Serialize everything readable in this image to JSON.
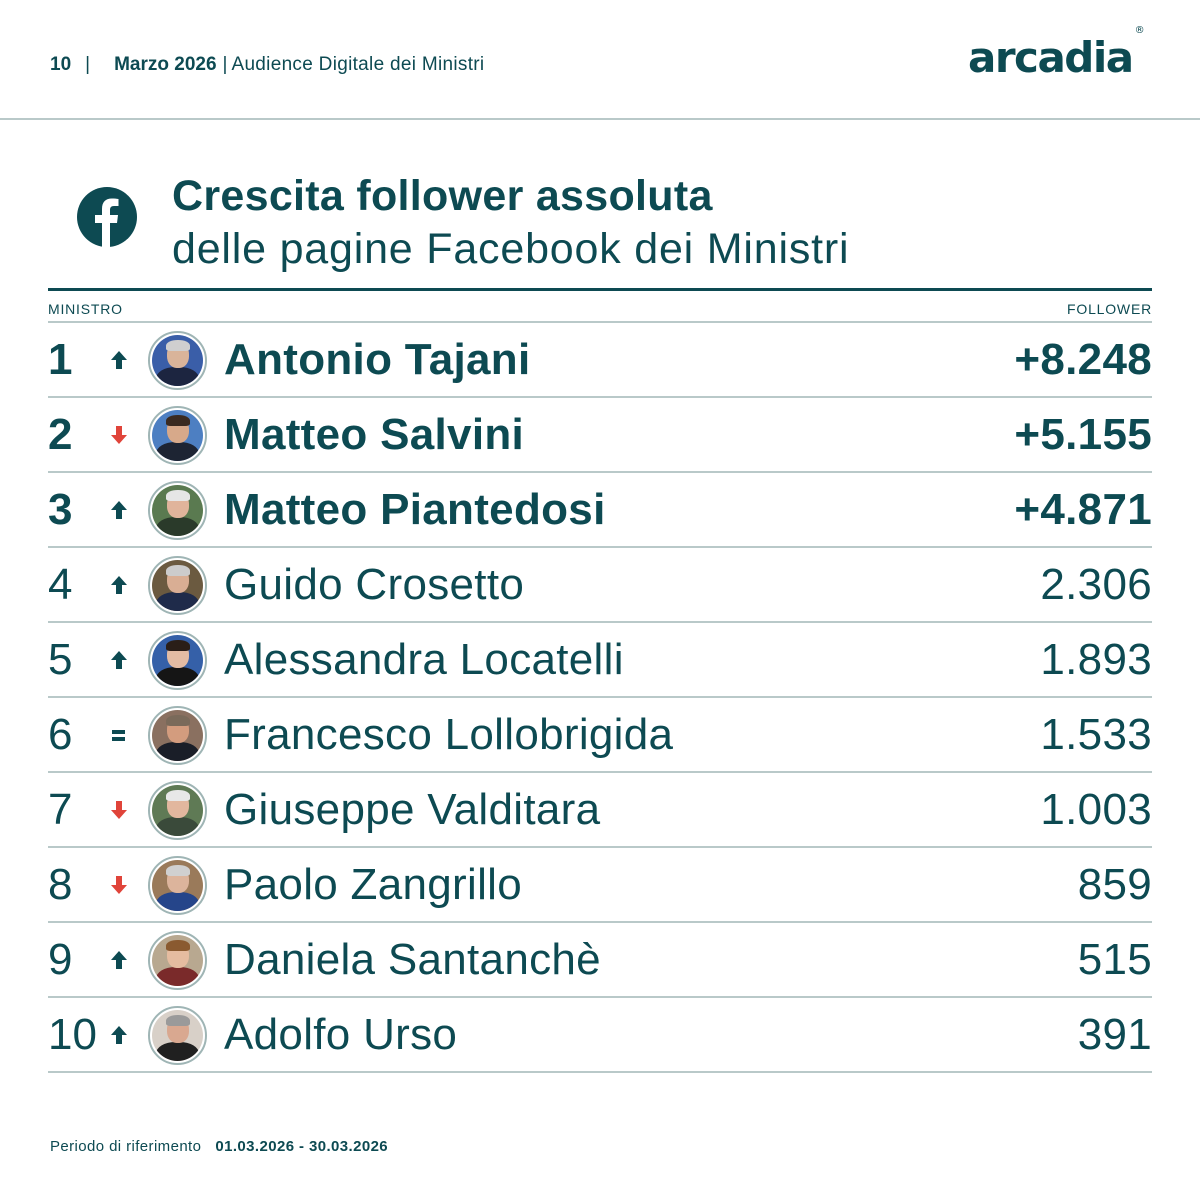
{
  "header": {
    "page_number": "10",
    "separator": "|",
    "month": "Marzo 2026",
    "doc_title": "Audience Digitale dei Ministri",
    "logo_text": "arcadia",
    "logo_mark": "®"
  },
  "section": {
    "icon": "facebook-icon",
    "title_line1": "Crescita follower assoluta",
    "title_line2": "delle pagine Facebook dei Ministri"
  },
  "table": {
    "columns": {
      "left": "MINISTRO",
      "right": "FOLLOWER"
    },
    "rows": [
      {
        "rank": "1",
        "trend": "up",
        "name": "Antonio Tajani",
        "value": "+8.248",
        "highlight": true
      },
      {
        "rank": "2",
        "trend": "down",
        "name": "Matteo Salvini",
        "value": "+5.155",
        "highlight": true
      },
      {
        "rank": "3",
        "trend": "up",
        "name": "Matteo Piantedosi",
        "value": "+4.871",
        "highlight": true
      },
      {
        "rank": "4",
        "trend": "up",
        "name": "Guido Crosetto",
        "value": "2.306",
        "highlight": false
      },
      {
        "rank": "5",
        "trend": "up",
        "name": "Alessandra Locatelli",
        "value": "1.893",
        "highlight": false
      },
      {
        "rank": "6",
        "trend": "same",
        "name": "Francesco Lollobrigida",
        "value": "1.533",
        "highlight": false
      },
      {
        "rank": "7",
        "trend": "down",
        "name": "Giuseppe Valditara",
        "value": "1.003",
        "highlight": false
      },
      {
        "rank": "8",
        "trend": "down",
        "name": "Paolo Zangrillo",
        "value": "859",
        "highlight": false
      },
      {
        "rank": "9",
        "trend": "up",
        "name": "Daniela Santanchè",
        "value": "515",
        "highlight": false
      },
      {
        "rank": "10",
        "trend": "up",
        "name": "Adolfo Urso",
        "value": "391",
        "highlight": false
      }
    ]
  },
  "footer": {
    "label": "Periodo di riferimento",
    "dates": "01.03.2026 - 30.03.2026"
  },
  "colors": {
    "primary": "#0d4a52",
    "up": "#0d4a52",
    "down": "#e0443a",
    "divider": "#b9c9c9"
  }
}
